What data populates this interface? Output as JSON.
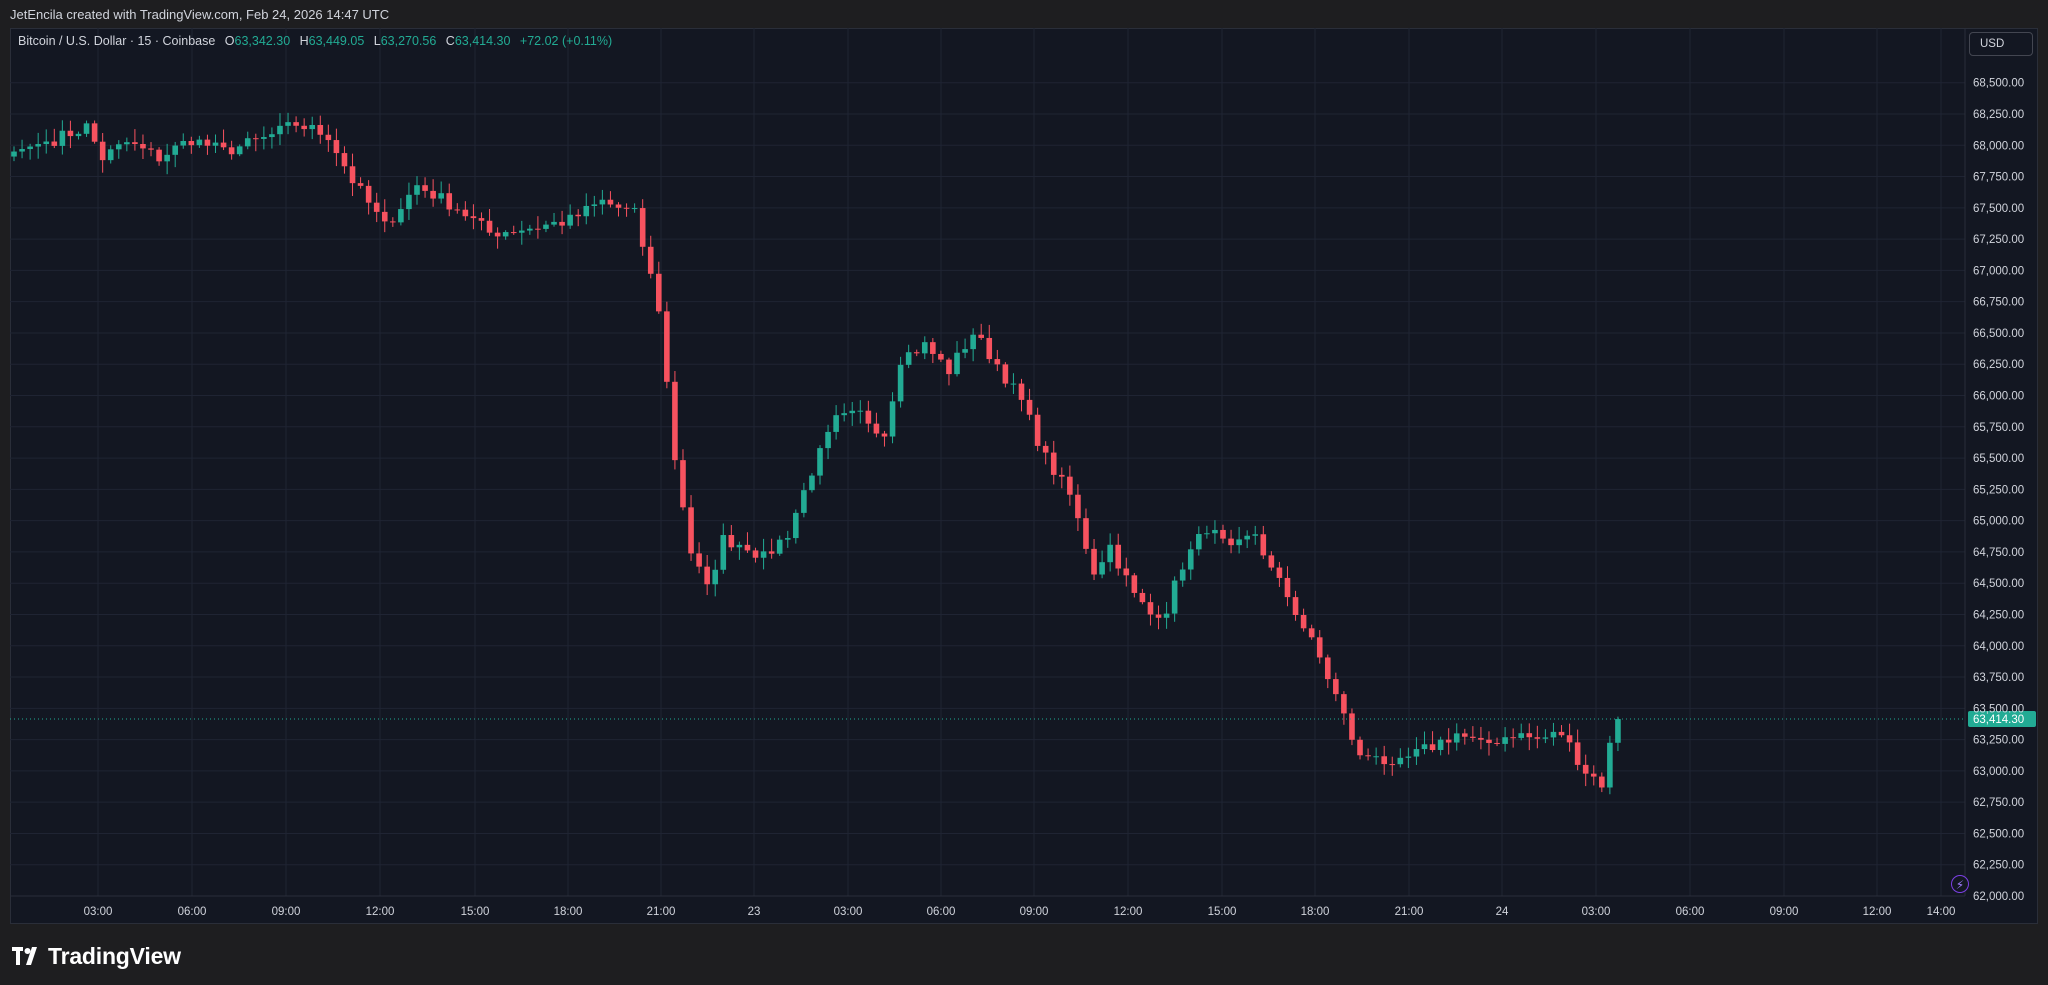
{
  "header": {
    "credit": "JetEncila created with TradingView.com, Feb 24, 2026 14:47 UTC"
  },
  "legend": {
    "symbol": "Bitcoin / U.S. Dollar · 15 · Coinbase",
    "open_key": "O",
    "open": "63,342.30",
    "high_key": "H",
    "high": "63,449.05",
    "low_key": "L",
    "low": "63,270.56",
    "close_key": "C",
    "close": "63,414.30",
    "change": "+72.02 (+0.11%)"
  },
  "toolbar": {
    "currency": "USD"
  },
  "footer": {
    "brand": "TradingView"
  },
  "icons": {
    "logo": "tradingview-logo-icon",
    "bolt": "lightning-bolt-icon"
  },
  "colors": {
    "up": "#22ab94",
    "down": "#f7525f",
    "background": "#131722",
    "grid": "#1f2433",
    "text": "#d1d4dc"
  },
  "chart_data": {
    "type": "candlestick",
    "interval": "15",
    "ylim": [
      62000,
      68750
    ],
    "y_ticks": [
      62000,
      62250,
      62500,
      62750,
      63000,
      63250,
      63500,
      63750,
      64000,
      64250,
      64500,
      64750,
      65000,
      65250,
      65500,
      65750,
      66000,
      66250,
      66500,
      66750,
      67000,
      67250,
      67500,
      67750,
      68000,
      68250,
      68500
    ],
    "y_tick_labels": [
      "62,000.00",
      "62,250.00",
      "62,500.00",
      "62,750.00",
      "63,000.00",
      "63,250.00",
      "63,500.00",
      "63,750.00",
      "64,000.00",
      "64,250.00",
      "64,500.00",
      "64,750.00",
      "65,000.00",
      "65,250.00",
      "65,500.00",
      "65,750.00",
      "66,000.00",
      "66,250.00",
      "66,500.00",
      "66,750.00",
      "67,000.00",
      "67,250.00",
      "67,500.00",
      "67,750.00",
      "68,000.00",
      "68,250.00",
      "68,500.00"
    ],
    "x_ticks": [
      "03:00",
      "06:00",
      "09:00",
      "12:00",
      "15:00",
      "18:00",
      "21:00",
      "23",
      "03:00",
      "06:00",
      "09:00",
      "12:00",
      "15:00",
      "18:00",
      "21:00",
      "24",
      "03:00",
      "06:00",
      "09:00",
      "12:00",
      "14:00"
    ],
    "last_price": 63414.3,
    "last_price_label": "63,414.30",
    "anchors": [
      [
        0,
        67950
      ],
      [
        6,
        68070
      ],
      [
        9,
        68150
      ],
      [
        11,
        67900
      ],
      [
        14,
        68020
      ],
      [
        18,
        67900
      ],
      [
        22,
        68050
      ],
      [
        26,
        67950
      ],
      [
        31,
        68050
      ],
      [
        35,
        68170
      ],
      [
        39,
        68080
      ],
      [
        42,
        67720
      ],
      [
        46,
        67350
      ],
      [
        50,
        67680
      ],
      [
        55,
        67500
      ],
      [
        59,
        67300
      ],
      [
        65,
        67350
      ],
      [
        69,
        67400
      ],
      [
        73,
        67550
      ],
      [
        77,
        67450
      ],
      [
        80,
        66700
      ],
      [
        82,
        65500
      ],
      [
        84,
        64750
      ],
      [
        86,
        64450
      ],
      [
        88,
        64850
      ],
      [
        91,
        64800
      ],
      [
        93,
        64700
      ],
      [
        96,
        64900
      ],
      [
        99,
        65400
      ],
      [
        102,
        65800
      ],
      [
        105,
        65850
      ],
      [
        108,
        65700
      ],
      [
        110,
        66300
      ],
      [
        113,
        66400
      ],
      [
        116,
        66200
      ],
      [
        119,
        66500
      ],
      [
        122,
        66250
      ],
      [
        125,
        65950
      ],
      [
        128,
        65500
      ],
      [
        131,
        65200
      ],
      [
        134,
        64600
      ],
      [
        136,
        64800
      ],
      [
        139,
        64400
      ],
      [
        141,
        64250
      ],
      [
        143,
        64300
      ],
      [
        145,
        64650
      ],
      [
        148,
        64950
      ],
      [
        151,
        64750
      ],
      [
        154,
        64900
      ],
      [
        156,
        64600
      ],
      [
        158,
        64400
      ],
      [
        162,
        63900
      ],
      [
        164,
        63600
      ],
      [
        167,
        63100
      ],
      [
        169,
        63150
      ],
      [
        171,
        63000
      ],
      [
        173,
        63100
      ],
      [
        176,
        63200
      ],
      [
        179,
        63300
      ],
      [
        182,
        63200
      ],
      [
        186,
        63300
      ],
      [
        189,
        63250
      ],
      [
        192,
        63300
      ],
      [
        195,
        63000
      ],
      [
        197,
        62900
      ],
      [
        198,
        63200
      ],
      [
        199,
        63414
      ]
    ]
  }
}
